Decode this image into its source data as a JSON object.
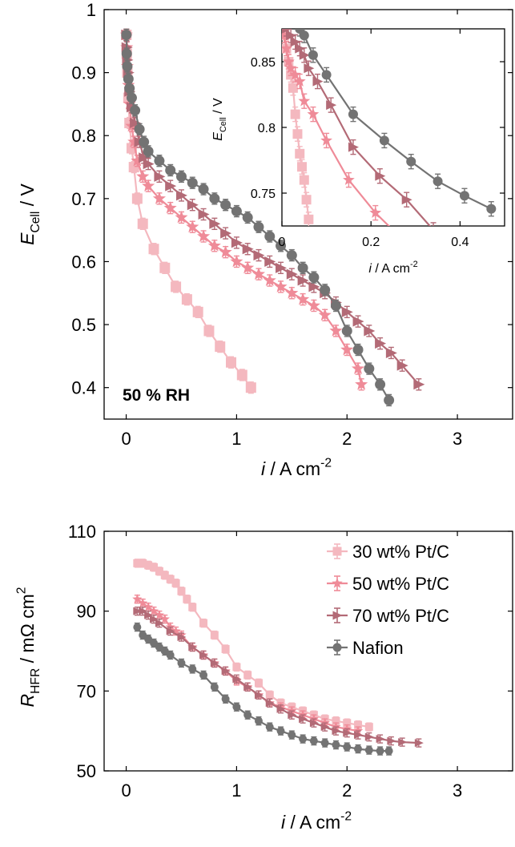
{
  "chart_data": [
    {
      "type": "line",
      "panel": "top-main",
      "xlabel": {
        "italic": "i",
        "rest": " / A cm",
        "sup": "-2"
      },
      "ylabel": {
        "italic": "E",
        "sub": "Cell",
        "rest": " / V"
      },
      "annotation": "50 % RH",
      "xlim": [
        -0.2,
        3.5
      ],
      "ylim": [
        0.35,
        1.0
      ],
      "xticks": [
        "0",
        "1",
        "2",
        "3"
      ],
      "xtick_values": [
        0,
        1,
        2,
        3
      ],
      "yticks": [
        "0.4",
        "0.5",
        "0.6",
        "0.7",
        "0.8",
        "0.9",
        "1"
      ],
      "ytick_values": [
        0.4,
        0.5,
        0.6,
        0.7,
        0.8,
        0.9,
        1.0
      ],
      "series": [
        {
          "key": "pt30",
          "color": "#f4b8bf",
          "marker": "square",
          "x": [
            0.002,
            0.005,
            0.01,
            0.02,
            0.03,
            0.05,
            0.07,
            0.1,
            0.15,
            0.25,
            0.35,
            0.45,
            0.55,
            0.65,
            0.75,
            0.85,
            0.95,
            1.05,
            1.13
          ],
          "y": [
            0.96,
            0.93,
            0.9,
            0.86,
            0.82,
            0.78,
            0.75,
            0.7,
            0.66,
            0.62,
            0.59,
            0.56,
            0.54,
            0.52,
            0.49,
            0.465,
            0.44,
            0.42,
            0.4
          ]
        },
        {
          "key": "pt50",
          "color": "#ef8b98",
          "marker": "star",
          "x": [
            0.002,
            0.005,
            0.01,
            0.02,
            0.03,
            0.05,
            0.07,
            0.1,
            0.15,
            0.2,
            0.3,
            0.4,
            0.5,
            0.6,
            0.7,
            0.8,
            0.9,
            1.0,
            1.1,
            1.2,
            1.3,
            1.4,
            1.5,
            1.6,
            1.7,
            1.8,
            1.9,
            2.0,
            2.1,
            2.13
          ],
          "y": [
            0.96,
            0.94,
            0.91,
            0.88,
            0.85,
            0.815,
            0.79,
            0.76,
            0.735,
            0.72,
            0.7,
            0.685,
            0.67,
            0.655,
            0.64,
            0.625,
            0.615,
            0.6,
            0.59,
            0.58,
            0.57,
            0.56,
            0.55,
            0.54,
            0.53,
            0.515,
            0.49,
            0.46,
            0.43,
            0.405
          ]
        },
        {
          "key": "pt70",
          "color": "#b36a76",
          "marker": "triangle-right",
          "x": [
            0.002,
            0.005,
            0.01,
            0.02,
            0.03,
            0.05,
            0.08,
            0.12,
            0.16,
            0.2,
            0.3,
            0.4,
            0.5,
            0.6,
            0.7,
            0.8,
            0.9,
            1.0,
            1.1,
            1.2,
            1.3,
            1.4,
            1.5,
            1.6,
            1.7,
            1.8,
            1.9,
            2.0,
            2.1,
            2.2,
            2.3,
            2.4,
            2.5,
            2.65
          ],
          "y": [
            0.96,
            0.94,
            0.92,
            0.9,
            0.87,
            0.845,
            0.82,
            0.79,
            0.765,
            0.755,
            0.735,
            0.72,
            0.705,
            0.69,
            0.675,
            0.66,
            0.645,
            0.63,
            0.62,
            0.61,
            0.6,
            0.59,
            0.58,
            0.57,
            0.56,
            0.55,
            0.535,
            0.52,
            0.505,
            0.49,
            0.47,
            0.455,
            0.435,
            0.405
          ]
        },
        {
          "key": "nafion",
          "color": "#737373",
          "marker": "circle",
          "x": [
            0.002,
            0.005,
            0.01,
            0.02,
            0.03,
            0.05,
            0.08,
            0.12,
            0.16,
            0.2,
            0.3,
            0.4,
            0.5,
            0.6,
            0.7,
            0.8,
            0.9,
            1.0,
            1.1,
            1.2,
            1.3,
            1.4,
            1.5,
            1.6,
            1.7,
            1.8,
            1.9,
            2.0,
            2.1,
            2.2,
            2.3,
            2.38
          ],
          "y": [
            0.96,
            0.93,
            0.91,
            0.89,
            0.875,
            0.86,
            0.84,
            0.81,
            0.79,
            0.775,
            0.76,
            0.745,
            0.735,
            0.725,
            0.715,
            0.7,
            0.69,
            0.68,
            0.67,
            0.655,
            0.64,
            0.625,
            0.61,
            0.59,
            0.575,
            0.555,
            0.53,
            0.49,
            0.46,
            0.43,
            0.405,
            0.38
          ]
        }
      ]
    },
    {
      "type": "line",
      "panel": "top-inset",
      "xlabel": {
        "italic": "i",
        "rest": " / A cm",
        "sup": "-2"
      },
      "ylabel": {
        "italic": "E",
        "sub": "Cell",
        "rest": " / V"
      },
      "xlim": [
        0,
        0.5
      ],
      "ylim": [
        0.725,
        0.875
      ],
      "xticks": [
        "0",
        "0.2",
        "0.4"
      ],
      "xtick_values": [
        0,
        0.2,
        0.4
      ],
      "yticks": [
        "0.75",
        "0.8",
        "0.85"
      ],
      "ytick_values": [
        0.75,
        0.8,
        0.85
      ],
      "series": [
        {
          "key": "pt30",
          "color": "#f4b8bf",
          "marker": "square",
          "x": [
            0.002,
            0.005,
            0.01,
            0.015,
            0.02,
            0.025,
            0.03,
            0.035,
            0.04,
            0.045,
            0.05,
            0.055,
            0.06
          ],
          "y": [
            0.875,
            0.87,
            0.86,
            0.85,
            0.84,
            0.83,
            0.81,
            0.795,
            0.78,
            0.77,
            0.76,
            0.745,
            0.73
          ]
        },
        {
          "key": "pt50",
          "color": "#ef8b98",
          "marker": "star",
          "x": [
            0.005,
            0.01,
            0.015,
            0.02,
            0.03,
            0.04,
            0.05,
            0.07,
            0.1,
            0.15,
            0.21,
            0.27
          ],
          "y": [
            0.87,
            0.86,
            0.85,
            0.845,
            0.84,
            0.835,
            0.82,
            0.81,
            0.79,
            0.76,
            0.735,
            0.715
          ]
        },
        {
          "key": "pt70",
          "color": "#b36a76",
          "marker": "triangle-right",
          "x": [
            0.01,
            0.02,
            0.03,
            0.04,
            0.05,
            0.06,
            0.08,
            0.11,
            0.16,
            0.22,
            0.28,
            0.34
          ],
          "y": [
            0.875,
            0.87,
            0.865,
            0.86,
            0.855,
            0.845,
            0.835,
            0.817,
            0.785,
            0.763,
            0.745,
            0.722
          ]
        },
        {
          "key": "nafion",
          "color": "#737373",
          "marker": "circle",
          "x": [
            0.04,
            0.05,
            0.07,
            0.1,
            0.16,
            0.23,
            0.29,
            0.35,
            0.41,
            0.47
          ],
          "y": [
            0.875,
            0.87,
            0.855,
            0.84,
            0.81,
            0.79,
            0.774,
            0.759,
            0.748,
            0.738
          ]
        }
      ]
    },
    {
      "type": "line",
      "panel": "bottom",
      "xlabel": {
        "italic": "i",
        "rest": " / A cm",
        "sup": "-2"
      },
      "ylabel": {
        "italic": "R",
        "sub": "HFR",
        "rest": " / mΩ cm",
        "sup": "2"
      },
      "xlim": [
        -0.2,
        3.5
      ],
      "ylim": [
        50,
        110
      ],
      "xticks": [
        "0",
        "1",
        "2",
        "3"
      ],
      "xtick_values": [
        0,
        1,
        2,
        3
      ],
      "yticks": [
        "50",
        "70",
        "90",
        "110"
      ],
      "ytick_values": [
        50,
        70,
        90,
        110
      ],
      "legend": {
        "position": "top-right",
        "entries": [
          {
            "key": "pt30",
            "label": "30 wt% Pt/C"
          },
          {
            "key": "pt50",
            "label": "50 wt% Pt/C"
          },
          {
            "key": "pt70",
            "label": "70 wt% Pt/C"
          },
          {
            "key": "nafion",
            "label": "Nafion"
          }
        ]
      },
      "series": [
        {
          "key": "pt30",
          "color": "#f4b8bf",
          "marker": "square",
          "x": [
            0.1,
            0.15,
            0.2,
            0.25,
            0.3,
            0.35,
            0.4,
            0.45,
            0.5,
            0.55,
            0.6,
            0.7,
            0.8,
            0.9,
            1.0,
            1.1,
            1.2,
            1.3,
            1.4,
            1.5,
            1.6,
            1.7,
            1.8,
            1.9,
            2.0,
            2.1,
            2.2
          ],
          "y": [
            102,
            102,
            101.5,
            101,
            100,
            99,
            98,
            97,
            95,
            93,
            91,
            87,
            84,
            80.5,
            76,
            74,
            72,
            69,
            67,
            66,
            65,
            64,
            63,
            62.5,
            62,
            61.5,
            61
          ]
        },
        {
          "key": "pt50",
          "color": "#ef8b98",
          "marker": "star",
          "x": [
            0.1,
            0.15,
            0.2,
            0.25,
            0.3,
            0.35,
            0.4,
            0.45,
            0.5,
            0.6,
            0.7,
            0.8,
            0.9,
            1.0,
            1.1,
            1.2,
            1.3,
            1.4,
            1.5,
            1.6,
            1.7,
            1.8,
            1.9,
            2.0,
            2.1
          ],
          "y": [
            93,
            92,
            91,
            90,
            89,
            88,
            86,
            85,
            84,
            81,
            79,
            77,
            75,
            72.5,
            71,
            69,
            67,
            66,
            65,
            64,
            63,
            62,
            61,
            60.5,
            60
          ]
        },
        {
          "key": "pt70",
          "color": "#b36a76",
          "marker": "triangle-right",
          "x": [
            0.1,
            0.15,
            0.2,
            0.25,
            0.3,
            0.4,
            0.5,
            0.6,
            0.7,
            0.8,
            0.9,
            1.0,
            1.1,
            1.2,
            1.3,
            1.4,
            1.5,
            1.6,
            1.7,
            1.8,
            1.9,
            2.0,
            2.1,
            2.2,
            2.3,
            2.4,
            2.5,
            2.65
          ],
          "y": [
            90,
            90,
            89,
            88,
            87,
            85,
            83.5,
            81,
            79,
            77,
            75,
            73,
            71,
            69,
            67,
            65.5,
            64,
            63,
            62,
            61,
            60,
            59.5,
            59,
            58.5,
            58,
            57.5,
            57.2,
            57
          ]
        },
        {
          "key": "nafion",
          "color": "#737373",
          "marker": "circle",
          "x": [
            0.1,
            0.15,
            0.2,
            0.25,
            0.3,
            0.35,
            0.4,
            0.5,
            0.6,
            0.7,
            0.8,
            0.9,
            1.0,
            1.1,
            1.2,
            1.3,
            1.4,
            1.5,
            1.6,
            1.7,
            1.8,
            1.9,
            2.0,
            2.1,
            2.2,
            2.3,
            2.38
          ],
          "y": [
            86,
            84,
            83,
            82,
            81,
            80,
            79,
            77,
            75.5,
            74,
            71,
            68,
            66,
            64,
            62.5,
            61,
            60,
            59,
            58,
            57.5,
            57,
            56.5,
            56,
            55.5,
            55.2,
            55,
            55
          ]
        }
      ]
    }
  ]
}
